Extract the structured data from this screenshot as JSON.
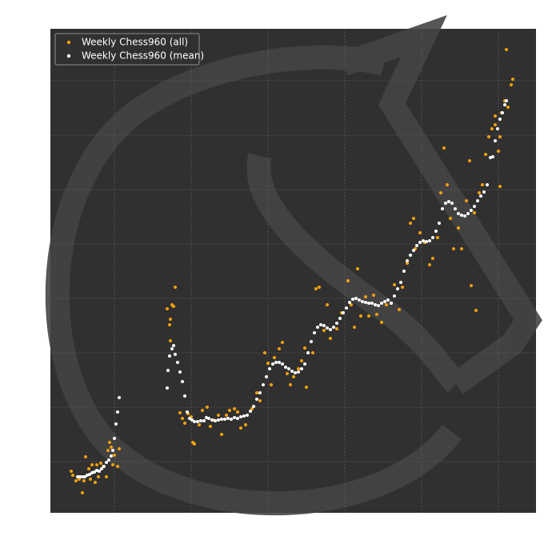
{
  "chart_data": {
    "type": "scatter",
    "xlim": [
      0,
      607
    ],
    "ylim": [
      0,
      605
    ],
    "xticks": [
      80,
      176,
      272,
      368,
      464,
      560
    ],
    "yticks": [
      64,
      132,
      200,
      268,
      336,
      404,
      472,
      540
    ],
    "grid": true,
    "legend": "upper left",
    "series": [
      {
        "name": "Weekly Chess960 (all)",
        "color": "#f0a30a",
        "x": [
          26,
          28,
          32,
          36,
          40,
          42,
          44,
          48,
          50,
          52,
          56,
          58,
          60,
          63,
          66,
          70,
          72,
          74,
          76,
          78,
          80,
          84,
          86,
          146,
          149,
          150,
          152,
          154,
          156,
          150,
          162,
          165,
          168,
          172,
          176,
          178,
          180,
          186,
          190,
          196,
          200,
          204,
          210,
          214,
          220,
          224,
          230,
          234,
          238,
          244,
          252,
          258,
          262,
          268,
          272,
          276,
          280,
          286,
          290,
          296,
          300,
          304,
          310,
          314,
          318,
          320,
          328,
          332,
          336,
          342,
          346,
          350,
          358,
          364,
          372,
          376,
          380,
          384,
          388,
          394,
          398,
          404,
          408,
          414,
          420,
          426,
          430,
          436,
          440,
          446,
          450,
          454,
          456,
          462,
          468,
          474,
          478,
          484,
          488,
          492,
          496,
          500,
          504,
          510,
          514,
          520,
          524,
          526,
          530,
          532,
          536,
          540,
          544,
          548,
          552,
          556,
          560,
          562,
          564,
          568,
          572,
          576,
          578,
          570,
          562,
          556
        ],
        "y": [
          52,
          47,
          40,
          42,
          25,
          40,
          70,
          55,
          42,
          60,
          38,
          60,
          45,
          62,
          58,
          45,
          78,
          88,
          82,
          60,
          72,
          58,
          80,
          255,
          235,
          242,
          260,
          258,
          282,
          215,
          125,
          118,
          112,
          124,
          120,
          88,
          86,
          110,
          128,
          132,
          108,
          116,
          122,
          98,
          122,
          128,
          130,
          126,
          106,
          110,
          130,
          150,
          140,
          200,
          187,
          160,
          194,
          205,
          213,
          174,
          160,
          170,
          180,
          190,
          206,
          157,
          200,
          280,
          282,
          228,
          260,
          218,
          230,
          250,
          290,
          260,
          232,
          305,
          246,
          270,
          246,
          272,
          248,
          238,
          260,
          262,
          285,
          254,
          282,
          312,
          362,
          368,
          330,
          350,
          338,
          310,
          318,
          344,
          400,
          456,
          410,
          368,
          330,
          356,
          330,
          390,
          440,
          284,
          375,
          253,
          400,
          410,
          448,
          470,
          480,
          496,
          452,
          408,
          500,
          515,
          507,
          535,
          542,
          579,
          470,
          485
        ]
      },
      {
        "name": "Weekly Chess960 (mean)",
        "color": "#ffffff",
        "x": [
          34,
          37,
          40,
          43,
          46,
          49,
          52,
          55,
          58,
          61,
          64,
          67,
          70,
          73,
          76,
          78,
          80,
          82,
          84,
          86,
          146,
          147,
          149,
          152,
          154,
          156,
          159,
          162,
          165,
          168,
          171,
          174,
          177,
          180,
          184,
          188,
          192,
          195,
          198,
          202,
          206,
          210,
          214,
          218,
          222,
          226,
          230,
          234,
          238,
          242,
          246,
          250,
          254,
          258,
          262,
          266,
          270,
          274,
          278,
          282,
          286,
          290,
          294,
          298,
          302,
          306,
          310,
          314,
          318,
          322,
          326,
          330,
          334,
          338,
          342,
          346,
          350,
          354,
          358,
          362,
          366,
          370,
          374,
          378,
          382,
          386,
          390,
          394,
          398,
          402,
          406,
          410,
          414,
          418,
          422,
          426,
          430,
          434,
          438,
          442,
          446,
          450,
          454,
          458,
          462,
          466,
          470,
          474,
          478,
          482,
          486,
          490,
          494,
          498,
          502,
          506,
          510,
          514,
          518,
          522,
          526,
          530,
          534,
          538,
          542,
          546,
          550,
          553,
          556,
          559,
          562,
          565,
          568,
          570
        ],
        "y": [
          45,
          45,
          45,
          45,
          47,
          48,
          50,
          51,
          53,
          52,
          55,
          58,
          63,
          66,
          71,
          78,
          93,
          111,
          126,
          144,
          156,
          178,
          196,
          205,
          209,
          198,
          188,
          176,
          164,
          146,
          126,
          118,
          116,
          114,
          114,
          115,
          115,
          119,
          118,
          116,
          115,
          116,
          117,
          117,
          118,
          117,
          119,
          118,
          120,
          121,
          122,
          127,
          133,
          142,
          150,
          160,
          170,
          180,
          186,
          188,
          188,
          186,
          182,
          180,
          177,
          175,
          176,
          180,
          186,
          200,
          214,
          225,
          232,
          235,
          234,
          231,
          229,
          232,
          237,
          243,
          250,
          256,
          263,
          267,
          268,
          266,
          264,
          263,
          262,
          262,
          260,
          259,
          262,
          264,
          266,
          262,
          271,
          280,
          288,
          302,
          315,
          322,
          328,
          334,
          338,
          340,
          339,
          340,
          344,
          352,
          362,
          380,
          387,
          389,
          387,
          380,
          374,
          372,
          371,
          374,
          378,
          383,
          390,
          396,
          401,
          410,
          444,
          445,
          465,
          480,
          492,
          500,
          510,
          515
        ]
      }
    ]
  }
}
